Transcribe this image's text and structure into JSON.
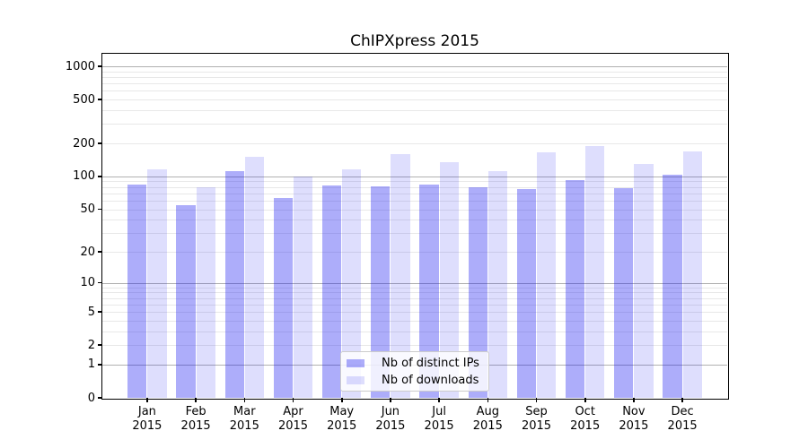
{
  "chart_data": {
    "type": "bar",
    "title": "ChIPXpress 2015",
    "xlabel": "",
    "ylabel": "",
    "yscale": "log1p",
    "ylim": [
      0,
      1300
    ],
    "grid": "both",
    "legend_position": "lower center",
    "ytick_labels": [
      0,
      1,
      2,
      5,
      10,
      20,
      50,
      100,
      200,
      500,
      1000
    ],
    "categories": [
      "Jan 2015",
      "Feb 2015",
      "Mar 2015",
      "Apr 2015",
      "May 2015",
      "Jun 2015",
      "Jul 2015",
      "Aug 2015",
      "Sep 2015",
      "Oct 2015",
      "Nov 2015",
      "Dec 2015"
    ],
    "series": [
      {
        "name": "Nb of distinct IPs",
        "color": "rgba(20,20,240,0.35)",
        "values": [
          85,
          54,
          112,
          64,
          83,
          81,
          85,
          80,
          76,
          92,
          78,
          104
        ]
      },
      {
        "name": "Nb of downloads",
        "color": "rgba(20,20,240,0.14)",
        "values": [
          115,
          80,
          150,
          100,
          116,
          161,
          135,
          111,
          166,
          190,
          130,
          168
        ]
      }
    ]
  },
  "colors": {
    "bar_distinct_ips": "rgba(20,20,240,0.35)",
    "bar_downloads": "rgba(20,20,240,0.14)",
    "bar_distinct_ips_hex": "#a9a9fa",
    "bar_downloads_hex": "#dcdcfb",
    "grid_major": "#b0b0b0",
    "grid_minor": "#e8e8e8",
    "axis": "#000000",
    "legend_border": "#cccccc",
    "background": "#ffffff"
  }
}
